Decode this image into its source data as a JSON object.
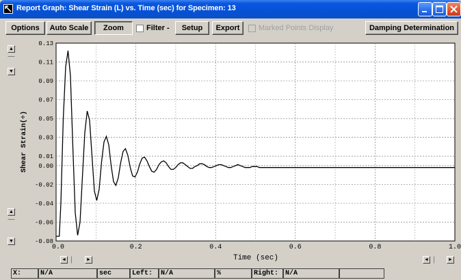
{
  "window": {
    "title": "Report Graph: Shear Strain (L) vs. Time (sec) for Specimen: 13",
    "controls": [
      "minimize-icon",
      "maximize-icon",
      "close-icon"
    ]
  },
  "toolbar": {
    "options": "Options",
    "auto_scale": "Auto Scale",
    "zoom": "Zoom",
    "filter": "Filter -",
    "setup": "Setup",
    "export": "Export",
    "marked_points": "Marked Points Display",
    "damping": "Damping Determination"
  },
  "chart_data": {
    "type": "line",
    "xlabel": "Time (sec)",
    "ylabel": "Shear Strain(÷)",
    "xlim": [
      0.0,
      1.0
    ],
    "ylim": [
      -0.08,
      0.13
    ],
    "x_ticks": [
      "0.0",
      "0.2",
      "0.4",
      "0.6",
      "0.8",
      "1.0"
    ],
    "y_ticks": [
      "0.13",
      "0.11",
      "0.09",
      "0.07",
      "0.05",
      "0.03",
      "0.01",
      "0.00",
      "-0.02",
      "-0.04",
      "-0.06",
      "-0.08"
    ],
    "grid": true,
    "series": [
      {
        "color": "#000000",
        "x": [
          0.0,
          0.008,
          0.012,
          0.018,
          0.024,
          0.03,
          0.036,
          0.042,
          0.048,
          0.054,
          0.06,
          0.066,
          0.072,
          0.078,
          0.084,
          0.09,
          0.096,
          0.102,
          0.108,
          0.114,
          0.12,
          0.126,
          0.132,
          0.138,
          0.144,
          0.15,
          0.156,
          0.162,
          0.168,
          0.174,
          0.18,
          0.186,
          0.192,
          0.198,
          0.204,
          0.21,
          0.216,
          0.222,
          0.228,
          0.234,
          0.24,
          0.246,
          0.252,
          0.258,
          0.264,
          0.27,
          0.276,
          0.282,
          0.288,
          0.294,
          0.3,
          0.306,
          0.312,
          0.318,
          0.324,
          0.33,
          0.336,
          0.342,
          0.348,
          0.354,
          0.36,
          0.366,
          0.372,
          0.378,
          0.384,
          0.39,
          0.396,
          0.402,
          0.408,
          0.414,
          0.42,
          0.426,
          0.432,
          0.438,
          0.444,
          0.45,
          0.456,
          0.462,
          0.468,
          0.474,
          0.48,
          0.486,
          0.492,
          0.498,
          0.504,
          0.51,
          0.516,
          0.522,
          0.528,
          0.534,
          0.54,
          0.56,
          0.6,
          0.7,
          0.8,
          0.9,
          1.0
        ],
        "y": [
          -0.075,
          -0.075,
          -0.04,
          0.05,
          0.105,
          0.122,
          0.095,
          0.02,
          -0.05,
          -0.074,
          -0.06,
          -0.012,
          0.035,
          0.058,
          0.048,
          0.01,
          -0.027,
          -0.037,
          -0.025,
          0.004,
          0.025,
          0.031,
          0.022,
          0.0,
          -0.017,
          -0.021,
          -0.013,
          0.003,
          0.015,
          0.018,
          0.011,
          -0.002,
          -0.011,
          -0.012,
          -0.007,
          0.002,
          0.008,
          0.009,
          0.005,
          -0.001,
          -0.006,
          -0.007,
          -0.004,
          0.001,
          0.004,
          0.005,
          0.003,
          -0.001,
          -0.004,
          -0.004,
          -0.002,
          0.001,
          0.003,
          0.003,
          0.001,
          -0.001,
          -0.003,
          -0.003,
          -0.001,
          0.0,
          0.002,
          0.002,
          0.001,
          -0.001,
          -0.002,
          -0.002,
          -0.001,
          0.0,
          0.001,
          0.001,
          0.0,
          -0.001,
          -0.002,
          -0.002,
          -0.001,
          0.0,
          0.001,
          0.0,
          -0.001,
          -0.002,
          -0.002,
          -0.002,
          -0.001,
          -0.001,
          -0.001,
          -0.002,
          -0.002,
          -0.002,
          -0.002,
          -0.002,
          -0.002,
          -0.002,
          -0.002,
          -0.002,
          -0.002,
          -0.002,
          -0.002
        ]
      }
    ]
  },
  "statusbar": {
    "x_label": "X:",
    "x_value": "N/A",
    "unit": "sec",
    "left_label": "Left:",
    "left_value": "N/A",
    "percent": "%",
    "right_label": "Right:",
    "right_value": "N/A"
  }
}
